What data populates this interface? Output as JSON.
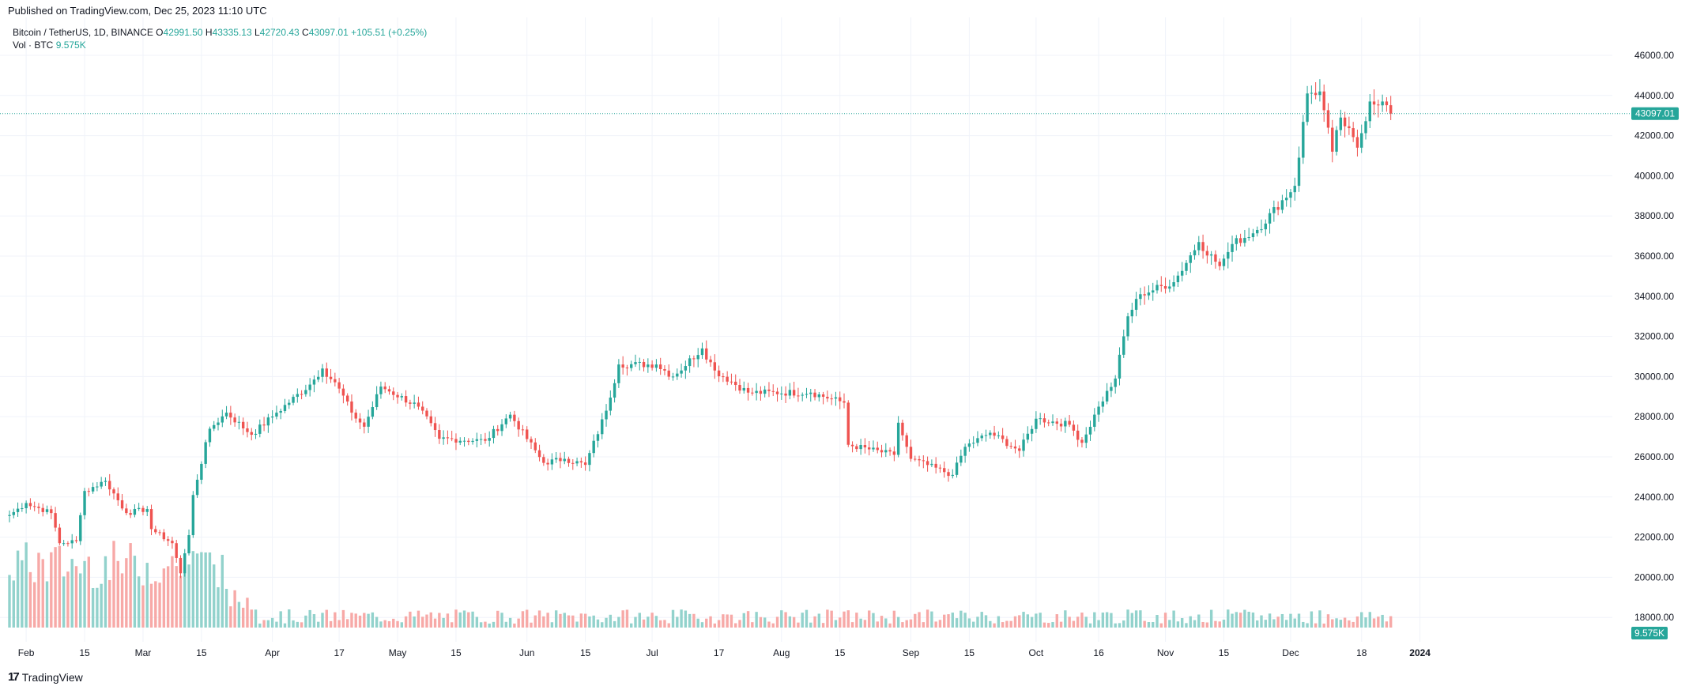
{
  "published_line": "Published on TradingView.com, Dec 25, 2023 11:10 UTC",
  "footer": {
    "logo_mark": "17",
    "brand": "TradingView"
  },
  "legend": {
    "symbol": "Bitcoin / TetherUS, 1D, BINANCE",
    "open_label": "O",
    "open": "42991.50",
    "high_label": "H",
    "high": "43335.13",
    "low_label": "L",
    "low": "42720.43",
    "close_label": "C",
    "close": "43097.01",
    "change": "+105.51 (+0.25%)",
    "vol_label": "Vol · BTC",
    "vol_value": "9.575K"
  },
  "price_badge": "43097.01",
  "volume_badge": "9.575K",
  "colors": {
    "up": "#26a69a",
    "down": "#ef5350",
    "up_vol": "#92d2cc",
    "down_vol": "#f7a9a7",
    "grid": "#f0f3fa",
    "text": "#131722",
    "legend_value": "#26a69a"
  },
  "chart_data": {
    "type": "candlestick",
    "title": "Bitcoin / TetherUS, 1D, BINANCE",
    "xlabel": "",
    "ylabel": "",
    "ylim": [
      16800,
      47000
    ],
    "grid": true,
    "last_price_line": 43097.01,
    "y_ticks": [
      "46000.00",
      "44000.00",
      "42000.00",
      "40000.00",
      "38000.00",
      "36000.00",
      "34000.00",
      "32000.00",
      "30000.00",
      "28000.00",
      "26000.00",
      "24000.00",
      "22000.00",
      "20000.00",
      "18000.00"
    ],
    "x_ticks": [
      "Feb",
      "15",
      "Mar",
      "15",
      "Apr",
      "17",
      "May",
      "15",
      "Jun",
      "15",
      "Jul",
      "17",
      "Aug",
      "15",
      "Sep",
      "15",
      "Oct",
      "16",
      "Nov",
      "15",
      "Dec",
      "18",
      "2024"
    ],
    "anchors": [
      {
        "date": "2023-01-28",
        "close": 23100
      },
      {
        "date": "2023-02-01",
        "close": 23700
      },
      {
        "date": "2023-02-07",
        "close": 23200
      },
      {
        "date": "2023-02-09",
        "close": 21700
      },
      {
        "date": "2023-02-13",
        "close": 21800
      },
      {
        "date": "2023-02-15",
        "close": 24300
      },
      {
        "date": "2023-02-20",
        "close": 24800
      },
      {
        "date": "2023-02-25",
        "close": 23200
      },
      {
        "date": "2023-03-02",
        "close": 23400
      },
      {
        "date": "2023-03-03",
        "close": 22400
      },
      {
        "date": "2023-03-08",
        "close": 21700
      },
      {
        "date": "2023-03-10",
        "close": 20200
      },
      {
        "date": "2023-03-12",
        "close": 22100
      },
      {
        "date": "2023-03-13",
        "close": 24100
      },
      {
        "date": "2023-03-17",
        "close": 27400
      },
      {
        "date": "2023-03-21",
        "close": 28200
      },
      {
        "date": "2023-03-27",
        "close": 27100
      },
      {
        "date": "2023-04-02",
        "close": 28200
      },
      {
        "date": "2023-04-10",
        "close": 29600
      },
      {
        "date": "2023-04-13",
        "close": 30400
      },
      {
        "date": "2023-04-17",
        "close": 29400
      },
      {
        "date": "2023-04-20",
        "close": 28200
      },
      {
        "date": "2023-04-23",
        "close": 27500
      },
      {
        "date": "2023-04-27",
        "close": 29500
      },
      {
        "date": "2023-05-06",
        "close": 28500
      },
      {
        "date": "2023-05-11",
        "close": 26900
      },
      {
        "date": "2023-05-22",
        "close": 26800
      },
      {
        "date": "2023-05-28",
        "close": 28100
      },
      {
        "date": "2023-06-05",
        "close": 25700
      },
      {
        "date": "2023-06-10",
        "close": 25900
      },
      {
        "date": "2023-06-15",
        "close": 25600
      },
      {
        "date": "2023-06-20",
        "close": 28300
      },
      {
        "date": "2023-06-23",
        "close": 30600
      },
      {
        "date": "2023-07-02",
        "close": 30600
      },
      {
        "date": "2023-07-06",
        "close": 30000
      },
      {
        "date": "2023-07-13",
        "close": 31400
      },
      {
        "date": "2023-07-16",
        "close": 30300
      },
      {
        "date": "2023-07-24",
        "close": 29200
      },
      {
        "date": "2023-08-08",
        "close": 29200
      },
      {
        "date": "2023-08-16",
        "close": 28700
      },
      {
        "date": "2023-08-17",
        "close": 26600
      },
      {
        "date": "2023-08-28",
        "close": 26100
      },
      {
        "date": "2023-08-29",
        "close": 27700
      },
      {
        "date": "2023-09-01",
        "close": 25900
      },
      {
        "date": "2023-09-11",
        "close": 25100
      },
      {
        "date": "2023-09-14",
        "close": 26500
      },
      {
        "date": "2023-09-20",
        "close": 27200
      },
      {
        "date": "2023-09-27",
        "close": 26300
      },
      {
        "date": "2023-10-01",
        "close": 27900
      },
      {
        "date": "2023-10-09",
        "close": 27600
      },
      {
        "date": "2023-10-12",
        "close": 26700
      },
      {
        "date": "2023-10-16",
        "close": 28500
      },
      {
        "date": "2023-10-20",
        "close": 29900
      },
      {
        "date": "2023-10-23",
        "close": 33000
      },
      {
        "date": "2023-10-26",
        "close": 34100
      },
      {
        "date": "2023-11-03",
        "close": 34700
      },
      {
        "date": "2023-11-09",
        "close": 36700
      },
      {
        "date": "2023-11-14",
        "close": 35500
      },
      {
        "date": "2023-11-16",
        "close": 36200
      },
      {
        "date": "2023-11-17",
        "close": 36600
      },
      {
        "date": "2023-11-23",
        "close": 37300
      },
      {
        "date": "2023-12-02",
        "close": 39500
      },
      {
        "date": "2023-12-05",
        "close": 44100
      },
      {
        "date": "2023-12-08",
        "close": 44200
      },
      {
        "date": "2023-12-11",
        "close": 41200
      },
      {
        "date": "2023-12-13",
        "close": 42900
      },
      {
        "date": "2023-12-17",
        "close": 41400
      },
      {
        "date": "2023-12-20",
        "close": 43700
      },
      {
        "date": "2023-12-23",
        "close": 43700
      },
      {
        "date": "2023-12-25",
        "close": 43097
      }
    ],
    "volume_ylim": [
      0,
      70000
    ],
    "volume_note": "daily volume bars, BTC"
  }
}
